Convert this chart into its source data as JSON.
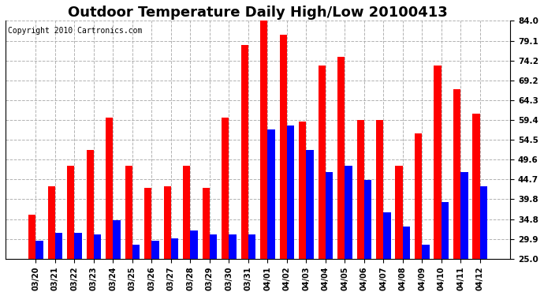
{
  "title": "Outdoor Temperature Daily High/Low 20100413",
  "copyright": "Copyright 2010 Cartronics.com",
  "dates": [
    "03/20",
    "03/21",
    "03/22",
    "03/23",
    "03/24",
    "03/25",
    "03/26",
    "03/27",
    "03/28",
    "03/29",
    "03/30",
    "03/31",
    "04/01",
    "04/02",
    "04/03",
    "04/04",
    "04/05",
    "04/06",
    "04/07",
    "04/08",
    "04/09",
    "04/10",
    "04/11",
    "04/12"
  ],
  "highs": [
    36.0,
    43.0,
    48.0,
    52.0,
    60.0,
    48.0,
    42.5,
    43.0,
    48.0,
    42.5,
    60.0,
    78.0,
    84.0,
    80.5,
    59.0,
    73.0,
    75.0,
    59.5,
    59.5,
    48.0,
    56.0,
    73.0,
    67.0,
    61.0
  ],
  "lows": [
    29.5,
    31.5,
    31.5,
    31.0,
    34.5,
    28.5,
    29.5,
    30.0,
    32.0,
    31.0,
    31.0,
    31.0,
    57.0,
    58.0,
    52.0,
    46.5,
    48.0,
    44.5,
    36.5,
    33.0,
    28.5,
    39.0,
    46.5,
    43.0
  ],
  "high_color": "#ff0000",
  "low_color": "#0000ff",
  "background_color": "#ffffff",
  "grid_color": "#aaaaaa",
  "yticks": [
    25.0,
    29.9,
    34.8,
    39.8,
    44.7,
    49.6,
    54.5,
    59.4,
    64.3,
    69.2,
    74.2,
    79.1,
    84.0
  ],
  "ylim": [
    25.0,
    84.0
  ],
  "title_fontsize": 13,
  "copyright_fontsize": 7
}
